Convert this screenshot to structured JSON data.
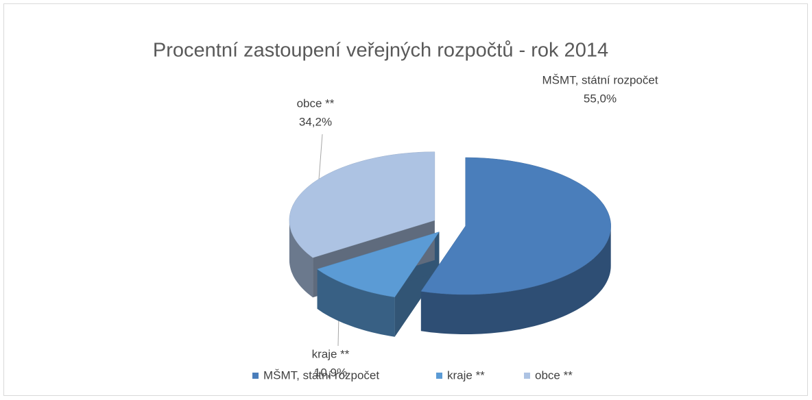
{
  "chart_data": {
    "type": "pie3d",
    "title": "Procentní zastoupení veřejných rozpočtů - rok 2014",
    "categories": [
      "MŠMT, státní rozpočet",
      "kraje **",
      "obce **"
    ],
    "values": [
      55.0,
      10.9,
      34.2
    ],
    "value_labels": [
      "55,0%",
      "10,9%",
      "34,2%"
    ],
    "colors": [
      "#4a7ebb",
      "#5b9bd5",
      "#adc3e3"
    ],
    "legend": "bottom"
  }
}
